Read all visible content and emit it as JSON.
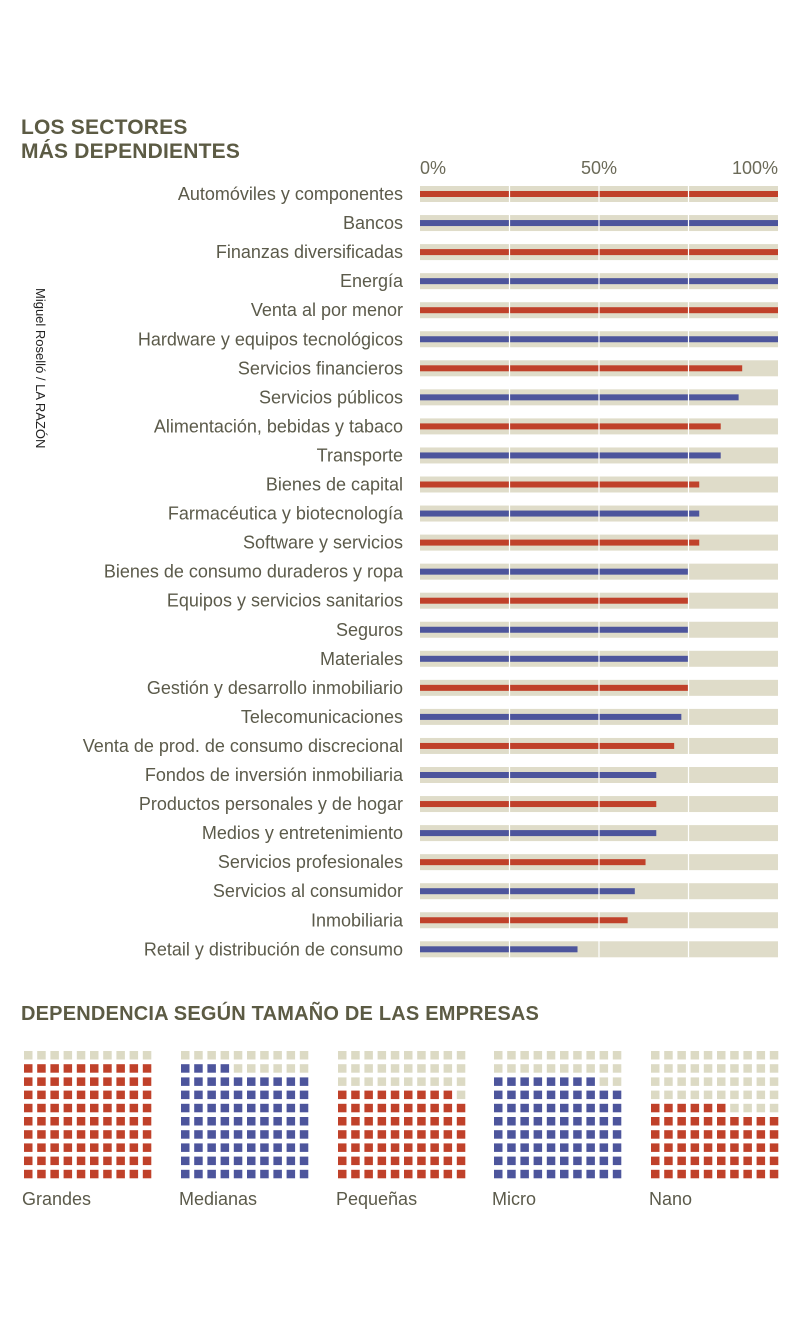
{
  "colors": {
    "red": "#c0412a",
    "blue": "#4d559c",
    "track": "#dfdcc9",
    "empty_square": "#dcdac4",
    "text": "#5b5a4a"
  },
  "credit": "Miguel Roselló / LA RAZÓN",
  "chart_data": [
    {
      "type": "bar",
      "orientation": "horizontal",
      "title": "LOS SECTORES MÁS DEPENDIENTES",
      "xlabel": "",
      "ylabel": "",
      "xlim": [
        0,
        100
      ],
      "x_ticks": [
        "0%",
        "50%",
        "100%"
      ],
      "gridlines_at": [
        25,
        50,
        75
      ],
      "categories": [
        "Automóviles y componentes",
        "Bancos",
        "Finanzas diversificadas",
        "Energía",
        "Venta al por menor",
        "Hardware y equipos tecnológicos",
        "Servicios financieros",
        "Servicios públicos",
        "Alimentación, bebidas y tabaco",
        "Transporte",
        "Bienes de capital",
        "Farmacéutica y biotecnología",
        "Software y servicios",
        "Bienes de consumo duraderos y ropa",
        "Equipos y servicios sanitarios",
        "Seguros",
        "Materiales",
        "Gestión y desarrollo inmobiliario",
        "Telecomunicaciones",
        "Venta de prod. de consumo discrecional",
        "Fondos de inversión inmobiliaria",
        "Productos personales y de hogar",
        "Medios y entretenimiento",
        "Servicios profesionales",
        "Servicios al consumidor",
        "Inmobiliaria",
        "Retail y distribución de consumo"
      ],
      "values": [
        100,
        100,
        100,
        100,
        100,
        100,
        90,
        89,
        84,
        84,
        78,
        78,
        78,
        75,
        75,
        75,
        75,
        75,
        73,
        71,
        66,
        66,
        66,
        63,
        60,
        58,
        44
      ],
      "bar_colors": [
        "red",
        "blue",
        "red",
        "blue",
        "red",
        "blue",
        "red",
        "blue",
        "red",
        "blue",
        "red",
        "blue",
        "red",
        "blue",
        "red",
        "blue",
        "blue",
        "red",
        "blue",
        "red",
        "blue",
        "red",
        "blue",
        "red",
        "blue",
        "red",
        "blue"
      ]
    },
    {
      "type": "waffle",
      "title": "DEPENDENCIA SEGÚN TAMAÑO DE LAS EMPRESAS",
      "total_per_grid": 100,
      "categories": [
        "Grandes",
        "Medianas",
        "Pequeñas",
        "Micro",
        "Nano"
      ],
      "values": [
        90,
        84,
        69,
        78,
        56
      ],
      "colors": [
        "red",
        "blue",
        "red",
        "blue",
        "red"
      ]
    }
  ]
}
